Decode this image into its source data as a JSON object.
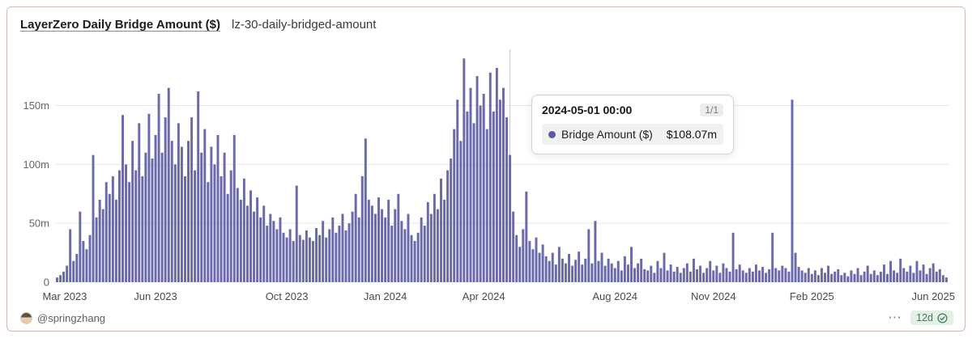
{
  "card": {
    "title": "LayerZero Daily Bridge Amount ($)",
    "subtitle": "lz-30-daily-bridged-amount",
    "footer": {
      "author": "@springzhang",
      "more_label": "⋯",
      "freshness": "12d"
    }
  },
  "tooltip": {
    "date": "2024-05-01 00:00",
    "page": "1/1",
    "series_label": "Bridge Amount ($)",
    "value": "$108.07m"
  },
  "colors": {
    "bar": "#6a6aab",
    "pointer_line": "#c7c7c7",
    "gridline": "#e7e7e7",
    "axis_label": "#666666",
    "x_label": "#4a4a4a",
    "card_border": "#e0b9a6",
    "tooltip_dot": "#5b5ba6",
    "freshness_green": "#3e7c53"
  },
  "chart_data": {
    "type": "bar",
    "title": "LayerZero Daily Bridge Amount ($)",
    "series_name": "Bridge Amount ($)",
    "unit": "millions USD",
    "start_date": "2023-03-01",
    "end_date": "2025-06-01",
    "sample_interval_days": 3,
    "grid": true,
    "ylim": [
      0,
      195
    ],
    "y_ticks": [
      {
        "value": 0,
        "label": "0"
      },
      {
        "value": 50,
        "label": "50m"
      },
      {
        "value": 100,
        "label": "100m"
      },
      {
        "value": 150,
        "label": "150m"
      }
    ],
    "x_ticks": [
      {
        "index": 0,
        "label": "Mar 2023"
      },
      {
        "index": 30,
        "label": "Jun 2023"
      },
      {
        "index": 70,
        "label": "Oct 2023"
      },
      {
        "index": 100,
        "label": "Jan 2024"
      },
      {
        "index": 130,
        "label": "Apr 2024"
      },
      {
        "index": 170,
        "label": "Aug 2024"
      },
      {
        "index": 200,
        "label": "Nov 2024"
      },
      {
        "index": 230,
        "label": "Feb 2025"
      },
      {
        "index": 270,
        "label": "Jun 2025"
      }
    ],
    "values": [
      4,
      6,
      9,
      14,
      45,
      18,
      24,
      60,
      35,
      28,
      40,
      108,
      55,
      70,
      62,
      85,
      75,
      90,
      70,
      95,
      142,
      100,
      85,
      120,
      95,
      135,
      90,
      110,
      143,
      105,
      125,
      160,
      110,
      140,
      165,
      120,
      100,
      135,
      115,
      90,
      120,
      140,
      95,
      162,
      110,
      130,
      85,
      115,
      100,
      125,
      90,
      110,
      75,
      95,
      125,
      80,
      70,
      88,
      65,
      78,
      60,
      72,
      55,
      65,
      48,
      58,
      52,
      45,
      55,
      42,
      38,
      45,
      35,
      82,
      40,
      36,
      44,
      38,
      35,
      46,
      40,
      52,
      38,
      45,
      55,
      42,
      48,
      58,
      44,
      50,
      60,
      75,
      55,
      90,
      122,
      70,
      65,
      58,
      72,
      62,
      55,
      70,
      48,
      62,
      75,
      52,
      45,
      58,
      40,
      35,
      42,
      55,
      48,
      68,
      58,
      75,
      62,
      88,
      70,
      95,
      105,
      130,
      155,
      120,
      190,
      145,
      165,
      135,
      175,
      150,
      160,
      130,
      178,
      145,
      182,
      155,
      165,
      140,
      108.07,
      60,
      40,
      30,
      45,
      77,
      35,
      28,
      38,
      25,
      32,
      22,
      18,
      25,
      15,
      30,
      20,
      16,
      24,
      14,
      19,
      26,
      15,
      20,
      45,
      16,
      52,
      18,
      25,
      14,
      20,
      16,
      12,
      18,
      10,
      22,
      15,
      30,
      12,
      16,
      20,
      11,
      10,
      14,
      8,
      18,
      12,
      25,
      10,
      15,
      9,
      13,
      8,
      12,
      16,
      9,
      20,
      11,
      14,
      8,
      12,
      18,
      10,
      14,
      8,
      16,
      12,
      9,
      42,
      11,
      15,
      10,
      8,
      12,
      9,
      15,
      10,
      13,
      8,
      11,
      42,
      12,
      10,
      14,
      12,
      9,
      155,
      25,
      13,
      10,
      8,
      12,
      7,
      10,
      6,
      12,
      8,
      14,
      7,
      9,
      11,
      6,
      8,
      5,
      10,
      7,
      12,
      6,
      9,
      14,
      7,
      10,
      6,
      9,
      15,
      7,
      18,
      10,
      8,
      20,
      12,
      9,
      14,
      8,
      18,
      10,
      15,
      7,
      12,
      16,
      9,
      11,
      6,
      4
    ],
    "highlight": {
      "index": 138,
      "date": "2024-05-01 00:00",
      "value": 108.07,
      "value_label": "$108.07m"
    },
    "legend_position": "none"
  }
}
